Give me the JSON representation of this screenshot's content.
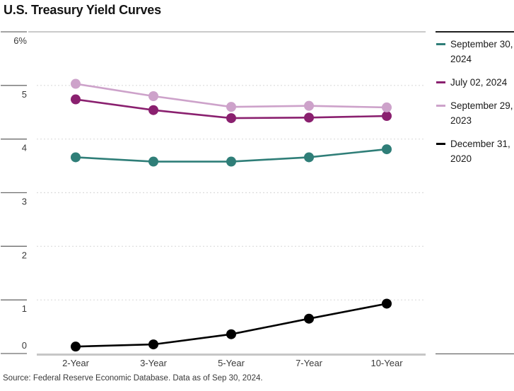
{
  "chart_data": {
    "type": "line",
    "title": "U.S. Treasury Yield Curves",
    "source": "Source: Federal Reserve Economic Database. Data as of Sep 30, 2024.",
    "categories": [
      "2-Year",
      "3-Year",
      "5-Year",
      "7-Year",
      "10-Year"
    ],
    "series": [
      {
        "id": "sep-30-2024",
        "name": "September 30, 2024",
        "color": "#2F7E78",
        "values": [
          3.66,
          3.58,
          3.58,
          3.66,
          3.81
        ]
      },
      {
        "id": "jul-02-2024",
        "name": "July 02, 2024",
        "color": "#8A206F",
        "values": [
          4.74,
          4.54,
          4.39,
          4.4,
          4.43
        ]
      },
      {
        "id": "sep-29-2023",
        "name": "September 29, 2023",
        "color": "#CDA2CA",
        "values": [
          5.03,
          4.8,
          4.6,
          4.62,
          4.59
        ]
      },
      {
        "id": "dec-31-2020",
        "name": "December 31, 2020",
        "color": "#000000",
        "values": [
          0.13,
          0.17,
          0.36,
          0.65,
          0.93
        ]
      }
    ],
    "ylim": [
      0,
      6
    ],
    "yticks": [
      0,
      1,
      2,
      3,
      4,
      5,
      6
    ],
    "ytick_labels": [
      "0",
      "1",
      "2",
      "3",
      "4",
      "5",
      "6%"
    ],
    "grid": "dotted horizontal gridlines",
    "legend_position": "right",
    "marker": "filled circle"
  }
}
